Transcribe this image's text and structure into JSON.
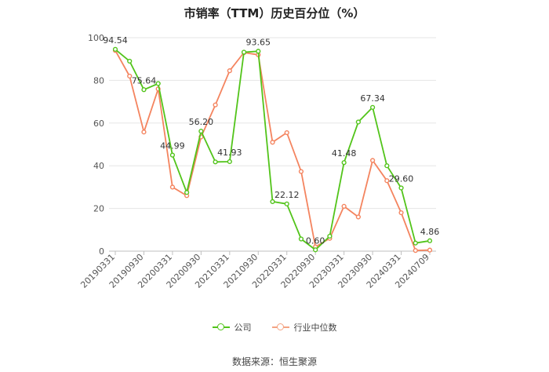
{
  "chart_data": {
    "type": "line",
    "title": "市销率（TTM）历史百分位（%）",
    "xlabel": "",
    "ylabel": "",
    "ylim": [
      0,
      100
    ],
    "yticks": [
      0,
      20,
      40,
      60,
      80,
      100
    ],
    "grid": true,
    "legend_placement": "bottom-center",
    "x": [
      "20190331",
      "20190630",
      "20190930",
      "20191231",
      "20200331",
      "20200630",
      "20200930",
      "20201231",
      "20210331",
      "20210630",
      "20210930",
      "20211231",
      "20220331",
      "20220630",
      "20220930",
      "20221231",
      "20230331",
      "20230630",
      "20230930",
      "20231231",
      "20240331",
      "20240630",
      "20240709"
    ],
    "x_tick_labels": [
      "20190331",
      "20190930",
      "20200331",
      "20200930",
      "20210331",
      "20210930",
      "20220331",
      "20220930",
      "20230331",
      "20230930",
      "20240331",
      "20240709"
    ],
    "series": [
      {
        "name": "公司",
        "color": "#52c41a",
        "values": [
          94.54,
          89,
          75.64,
          78.5,
          44.99,
          27.5,
          56.2,
          41.8,
          41.93,
          93.2,
          93.65,
          23.2,
          22.12,
          5.7,
          0.6,
          7.0,
          41.48,
          60.5,
          67.34,
          40.0,
          29.6,
          3.8,
          4.86
        ],
        "labels": {
          "0": "94.54",
          "2": "75.64",
          "4": "44.99",
          "6": "56.20",
          "8": "41.93",
          "10": "93.65",
          "12": "22.12",
          "14": "0.60",
          "16": "41.48",
          "18": "67.34",
          "20": "29.60",
          "22": "4.86"
        }
      },
      {
        "name": "行业中位数",
        "color": "#f4845f",
        "values": [
          94.0,
          82.0,
          55.8,
          76.0,
          30.0,
          26.0,
          53.5,
          68.5,
          84.5,
          93.0,
          92.0,
          51.0,
          55.5,
          37.3,
          2.0,
          6.0,
          21.0,
          16.0,
          42.5,
          33.0,
          18.0,
          0.3,
          0.5
        ]
      }
    ]
  },
  "source_text": "数据来源：恒生聚源"
}
